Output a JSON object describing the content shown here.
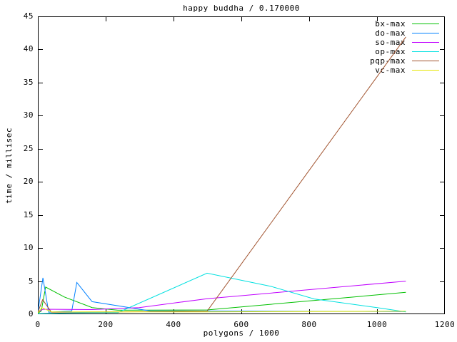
{
  "title": "happy buddha / 0.170000",
  "chart_data": {
    "type": "line",
    "title": "happy buddha / 0.170000",
    "xlabel": "polygons / 1000",
    "ylabel": "time / millisec",
    "xlim": [
      0,
      1200
    ],
    "ylim": [
      0,
      45
    ],
    "xticks": [
      0,
      200,
      400,
      600,
      800,
      1000,
      1200
    ],
    "yticks": [
      0,
      5,
      10,
      15,
      20,
      25,
      30,
      35,
      40,
      45
    ],
    "grid": false,
    "legend_position": "top-right-inside",
    "background_color": "#ffffff",
    "axis_color": "#000000",
    "series": [
      {
        "name": "bx-max",
        "color": "#00c000",
        "points": [
          [
            0,
            0.15
          ],
          [
            10,
            0.5
          ],
          [
            23,
            4.1
          ],
          [
            78,
            2.6
          ],
          [
            160,
            1.0
          ],
          [
            236,
            0.6
          ],
          [
            499,
            0.65
          ],
          [
            1085,
            3.3
          ]
        ]
      },
      {
        "name": "do-max",
        "color": "#0080ff",
        "points": [
          [
            0,
            0.2
          ],
          [
            15,
            5.5
          ],
          [
            32,
            0.3
          ],
          [
            100,
            0.5
          ],
          [
            115,
            4.8
          ],
          [
            160,
            1.9
          ],
          [
            331,
            0.5
          ],
          [
            1085,
            0.4
          ]
        ]
      },
      {
        "name": "so-max",
        "color": "#c000ff",
        "points": [
          [
            0,
            0.3
          ],
          [
            15,
            0.75
          ],
          [
            160,
            0.7
          ],
          [
            299,
            1.0
          ],
          [
            499,
            2.35
          ],
          [
            1085,
            5.0
          ]
        ]
      },
      {
        "name": "op-max",
        "color": "#00e0e0",
        "points": [
          [
            0,
            0.1
          ],
          [
            100,
            0.2
          ],
          [
            236,
            0.25
          ],
          [
            499,
            6.2
          ],
          [
            688,
            4.2
          ],
          [
            815,
            2.3
          ],
          [
            1000,
            1.0
          ],
          [
            1085,
            0.35
          ]
        ]
      },
      {
        "name": "pqp-max",
        "color": "#a0522d",
        "points": [
          [
            0,
            0.3
          ],
          [
            14,
            2.2
          ],
          [
            40,
            0.3
          ],
          [
            236,
            0.35
          ],
          [
            499,
            0.45
          ],
          [
            1085,
            41.9
          ]
        ]
      },
      {
        "name": "vc-max",
        "color": "#e6e600",
        "points": [
          [
            0,
            0.2
          ],
          [
            12,
            1.0
          ],
          [
            40,
            0.35
          ],
          [
            499,
            0.35
          ],
          [
            1085,
            0.45
          ]
        ]
      }
    ]
  }
}
